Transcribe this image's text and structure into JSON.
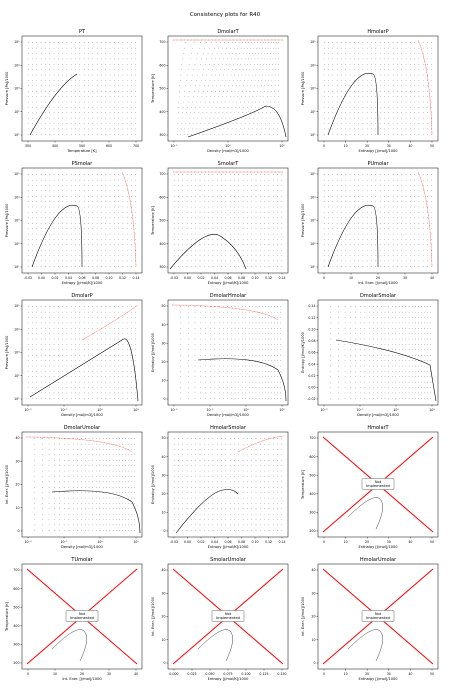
{
  "figure": {
    "title": "Consistency plots for R40"
  },
  "chart_data": [
    {
      "type": "scatter",
      "title": "PT",
      "xlabel": "Temperature [K]",
      "ylabel": "Pressure [Pa]/1000",
      "xlim": [
        200,
        750
      ],
      "ylog": true,
      "ylim": [
        3,
        150000
      ],
      "xticks": [
        "300",
        "400",
        "500",
        "600",
        "700"
      ],
      "yticks": [
        "10¹",
        "10²",
        "10³",
        "10⁴",
        "10⁵"
      ],
      "saturation": {
        "x": [
          220,
          260,
          300,
          340,
          380,
          416
        ],
        "y": [
          5,
          30,
          120,
          400,
          1000,
          6700
        ]
      },
      "envelope": "saturation curve with dotted grid of states",
      "redline": false
    },
    {
      "type": "scatter",
      "title": "DmolarT",
      "xlabel": "Density [mol/m3]/1000",
      "ylabel": "Temperature [K]",
      "xlim": [
        0.05,
        40
      ],
      "xlog": true,
      "ylim": [
        200,
        760
      ],
      "xticks": [
        "10⁻¹",
        "10⁰",
        "10¹"
      ],
      "yticks": [
        "300",
        "400",
        "500",
        "600",
        "700"
      ],
      "redline": true
    },
    {
      "type": "scatter",
      "title": "HmolarP",
      "xlabel": "Enthalpy [J/mol]/1000",
      "ylabel": "Pressure [Pa]/1000",
      "xlim": [
        -5,
        50
      ],
      "ylog": true,
      "ylim": [
        3,
        150000
      ],
      "xticks": [
        "0",
        "10",
        "20",
        "30",
        "40",
        "50"
      ],
      "yticks": [
        "10¹",
        "10²",
        "10³",
        "10⁴",
        "10⁵"
      ],
      "redline": true
    },
    {
      "type": "scatter",
      "title": "PSmolar",
      "xlabel": "Entropy [J/mol/K]/1000",
      "ylabel": "Pressure [Pa]/1000",
      "xlim": [
        -0.02,
        0.15
      ],
      "ylog": true,
      "ylim": [
        3,
        150000
      ],
      "xticks": [
        "-0.02",
        "0.00",
        "0.02",
        "0.04",
        "0.06",
        "0.08",
        "0.10",
        "0.12",
        "0.14"
      ],
      "yticks": [
        "10¹",
        "10²",
        "10³",
        "10⁴",
        "10⁵"
      ],
      "redline": true
    },
    {
      "type": "scatter",
      "title": "SmolarT",
      "xlabel": "Entropy [J/mol/K]/1000",
      "ylabel": "Temperature [K]",
      "xlim": [
        -0.02,
        0.15
      ],
      "ylim": [
        200,
        760
      ],
      "xticks": [
        "-0.02",
        "0.00",
        "0.02",
        "0.04",
        "0.06",
        "0.08",
        "0.10",
        "0.12",
        "0.14"
      ],
      "yticks": [
        "300",
        "400",
        "500",
        "600",
        "700"
      ],
      "redline": true
    },
    {
      "type": "scatter",
      "title": "PUmolar",
      "xlabel": "Int. Ener. [J/mol]/1000",
      "ylabel": "Pressure [Pa]/1000",
      "xlim": [
        -5,
        45
      ],
      "ylog": true,
      "ylim": [
        3,
        150000
      ],
      "xticks": [
        "0",
        "10",
        "20",
        "30",
        "40"
      ],
      "yticks": [
        "10¹",
        "10²",
        "10³",
        "10⁴",
        "10⁵"
      ],
      "redline": true
    },
    {
      "type": "scatter",
      "title": "DmolarP",
      "xlabel": "Density [mol/m3]/1000",
      "ylabel": "Pressure [Pa]/1000",
      "xlim": [
        0.005,
        40
      ],
      "xlog": true,
      "ylog": true,
      "ylim": [
        3,
        150000
      ],
      "xticks": [
        "10⁻²",
        "10⁻¹",
        "10⁰",
        "10¹"
      ],
      "yticks": [
        "10¹",
        "10²",
        "10³",
        "10⁴",
        "10⁵"
      ],
      "redline": true
    },
    {
      "type": "scatter",
      "title": "DmolarHmolar",
      "xlabel": "Density [mol/m3]/1000",
      "ylabel": "Enthalpy [J/mol]/1000",
      "xlim": [
        0.005,
        40
      ],
      "xlog": true,
      "ylim": [
        -2,
        50
      ],
      "xticks": [
        "10⁻²",
        "10⁻¹",
        "10⁰",
        "10¹"
      ],
      "yticks": [
        "0",
        "10",
        "20",
        "30",
        "40",
        "50"
      ],
      "redline": true
    },
    {
      "type": "scatter",
      "title": "DmolarSmolar",
      "xlabel": "Density [mol/m3]/1000",
      "ylabel": "Entropy [J/mol/K]/1000",
      "xlim": [
        0.005,
        40
      ],
      "xlog": true,
      "ylim": [
        -0.02,
        0.15
      ],
      "xticks": [
        "10⁻²",
        "10⁻¹",
        "10⁰",
        "10¹"
      ],
      "yticks": [
        "-0.02",
        "0.00",
        "0.02",
        "0.04",
        "0.06",
        "0.08",
        "0.10",
        "0.12",
        "0.14"
      ],
      "redline": false
    },
    {
      "type": "scatter",
      "title": "DmolarUmolar",
      "xlabel": "Density [mol/m3]/1000",
      "ylabel": "Int. Ener. [J/mol]/1000",
      "xlim": [
        0.005,
        40
      ],
      "xlog": true,
      "ylim": [
        -3,
        45
      ],
      "xticks": [
        "10⁻²",
        "10⁻¹",
        "10⁰",
        "10¹"
      ],
      "yticks": [
        "0",
        "10",
        "20",
        "30",
        "40"
      ],
      "redline": true
    },
    {
      "type": "scatter",
      "title": "HmolarSmolar",
      "xlabel": "Entropy [J/mol/K]/1000",
      "ylabel": "Enthalpy [J/mol]/1000",
      "xlim": [
        -0.02,
        0.15
      ],
      "ylim": [
        -2,
        50
      ],
      "xticks": [
        "-0.02",
        "0.00",
        "0.02",
        "0.04",
        "0.06",
        "0.08",
        "0.10",
        "0.12",
        "0.14"
      ],
      "yticks": [
        "0",
        "10",
        "20",
        "30",
        "40",
        "50"
      ],
      "redline": true
    },
    {
      "type": "scatter",
      "title": "HmolarT",
      "xlabel": "Enthalpy [J/mol]/1000",
      "ylabel": "Temperature [K]",
      "xlim": [
        -5,
        52
      ],
      "ylim": [
        200,
        760
      ],
      "xticks": [
        "0",
        "10",
        "20",
        "30",
        "40",
        "50"
      ],
      "yticks": [
        "200",
        "300",
        "400",
        "500",
        "600",
        "700"
      ],
      "not_implemented": "Not\nImplemented"
    },
    {
      "type": "scatter",
      "title": "TUmolar",
      "xlabel": "Int. Ener. [J/mol]/1000",
      "ylabel": "Temperature [K]",
      "xlim": [
        -5,
        45
      ],
      "ylim": [
        200,
        760
      ],
      "xticks": [
        "0",
        "10",
        "20",
        "30",
        "40"
      ],
      "yticks": [
        "200",
        "300",
        "400",
        "500",
        "600",
        "700"
      ],
      "not_implemented": "Not\nImplemented"
    },
    {
      "type": "scatter",
      "title": "SmolarUmolar",
      "xlabel": "Entropy [J/mol/K]/1000",
      "ylabel": "Int. Ener. [J/mol]/1000",
      "xlim": [
        -0.02,
        0.16
      ],
      "ylim": [
        -3,
        45
      ],
      "xticks": [
        "0.000",
        "0.025",
        "0.050",
        "0.075",
        "0.100",
        "0.125",
        "0.150"
      ],
      "yticks": [
        "0",
        "10",
        "20",
        "30",
        "40"
      ],
      "not_implemented": "Not\nImplemented"
    },
    {
      "type": "scatter",
      "title": "HmolarUmolar",
      "xlabel": "Enthalpy [J/mol]/1000",
      "ylabel": "Int. Ener. [J/mol]/1000",
      "xlim": [
        -5,
        52
      ],
      "ylim": [
        -3,
        45
      ],
      "xticks": [
        "0",
        "10",
        "20",
        "30",
        "40",
        "50"
      ],
      "yticks": [
        "0",
        "10",
        "20",
        "30",
        "40"
      ],
      "not_implemented": "Not\nImplemented"
    }
  ],
  "colors": {
    "grid_points": "#222222",
    "saturation": "#000000",
    "limit_line": "#ff0000",
    "frame": "#000000"
  }
}
